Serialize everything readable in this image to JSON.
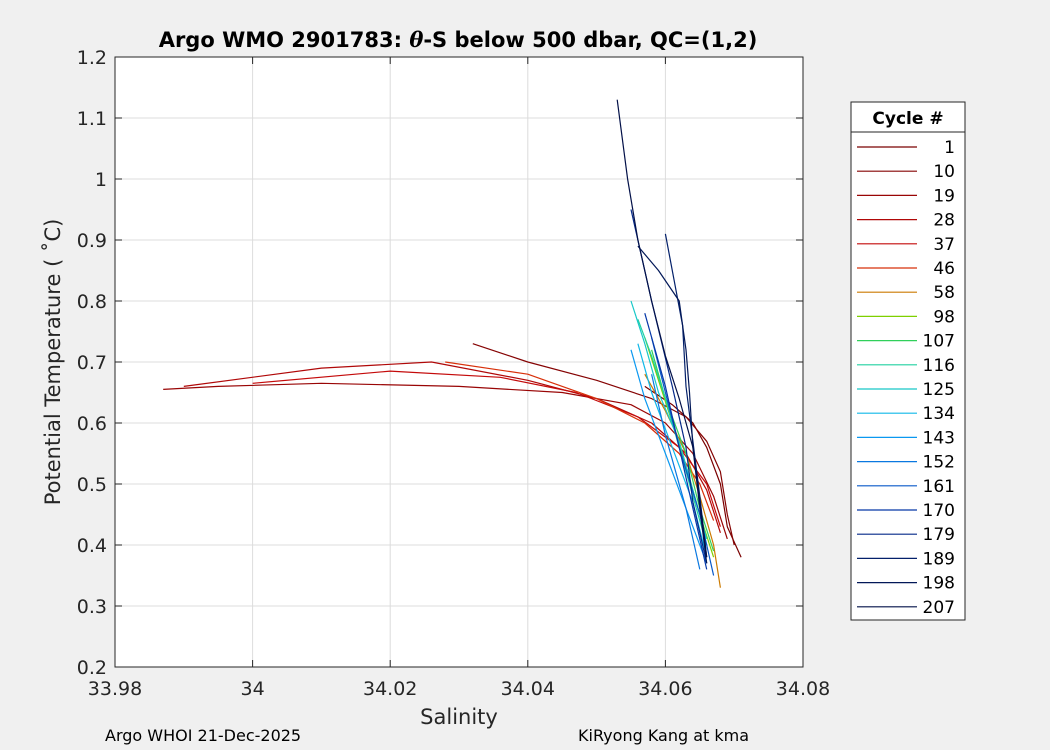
{
  "chart_data": {
    "type": "line",
    "title_prefix": "Argo WMO 2901783: ",
    "title_symbol": "θ",
    "title_suffix": "-S below 500 dbar,  QC=(1,2)",
    "xlabel": "Salinity",
    "ylabel": "Potential Temperature ( ˚C)",
    "xlim": [
      33.98,
      34.08
    ],
    "ylim": [
      0.2,
      1.2
    ],
    "xticks": [
      33.98,
      34,
      34.02,
      34.04,
      34.06,
      34.08
    ],
    "xtick_labels": [
      "33.98",
      "34",
      "34.02",
      "34.04",
      "34.06",
      "34.08"
    ],
    "yticks": [
      0.2,
      0.3,
      0.4,
      0.5,
      0.6,
      0.7,
      0.8,
      0.9,
      1.0,
      1.1,
      1.2
    ],
    "ytick_labels": [
      "0.2",
      "0.3",
      "0.4",
      "0.5",
      "0.6",
      "0.7",
      "0.8",
      "0.9",
      "1",
      "1.1",
      "1.2"
    ],
    "grid": true,
    "legend_title": "Cycle #",
    "legend_placement": "right-outside",
    "series": [
      {
        "name": "1",
        "color": "#7a0000",
        "x": [
          34.071,
          34.069,
          34.068,
          34.066,
          34.064,
          34.061,
          34.057
        ],
        "y": [
          0.38,
          0.43,
          0.5,
          0.56,
          0.6,
          0.63,
          0.66
        ]
      },
      {
        "name": "10",
        "color": "#850303",
        "x": [
          34.07,
          34.069,
          34.068,
          34.066,
          34.063,
          34.058,
          34.05,
          34.04,
          34.032
        ],
        "y": [
          0.4,
          0.45,
          0.52,
          0.57,
          0.61,
          0.64,
          0.67,
          0.7,
          0.73
        ]
      },
      {
        "name": "19",
        "color": "#990505",
        "x": [
          34.069,
          34.067,
          34.064,
          34.06,
          34.055,
          34.045,
          34.03,
          34.01,
          33.995,
          33.987
        ],
        "y": [
          0.41,
          0.48,
          0.55,
          0.6,
          0.63,
          0.65,
          0.66,
          0.665,
          0.66,
          0.655
        ]
      },
      {
        "name": "28",
        "color": "#b00808",
        "x": [
          34.068,
          34.066,
          34.063,
          34.058,
          34.05,
          34.04,
          34.026,
          34.01,
          33.99
        ],
        "y": [
          0.42,
          0.49,
          0.55,
          0.6,
          0.64,
          0.67,
          0.7,
          0.69,
          0.66
        ]
      },
      {
        "name": "37",
        "color": "#c40a0a",
        "x": [
          34.068,
          34.066,
          34.062,
          34.056,
          34.047,
          34.036,
          34.02,
          34.0
        ],
        "y": [
          0.43,
          0.5,
          0.56,
          0.61,
          0.65,
          0.675,
          0.685,
          0.665
        ]
      },
      {
        "name": "46",
        "color": "#d8300a",
        "x": [
          34.067,
          34.065,
          34.062,
          34.057,
          34.05,
          34.04,
          34.028
        ],
        "y": [
          0.44,
          0.5,
          0.55,
          0.6,
          0.64,
          0.68,
          0.7
        ]
      },
      {
        "name": "58",
        "color": "#cc7a00",
        "x": [
          34.068,
          34.067,
          34.065,
          34.063,
          34.06,
          34.057
        ],
        "y": [
          0.33,
          0.4,
          0.48,
          0.55,
          0.62,
          0.68
        ]
      },
      {
        "name": "98",
        "color": "#7fd000",
        "x": [
          34.067,
          34.065,
          34.063,
          34.061,
          34.059,
          34.057
        ],
        "y": [
          0.38,
          0.45,
          0.53,
          0.6,
          0.67,
          0.74
        ]
      },
      {
        "name": "107",
        "color": "#30d05a",
        "x": [
          34.067,
          34.065,
          34.063,
          34.06,
          34.058
        ],
        "y": [
          0.39,
          0.46,
          0.55,
          0.64,
          0.72
        ]
      },
      {
        "name": "116",
        "color": "#20d0a0",
        "x": [
          34.066,
          34.064,
          34.062,
          34.06,
          34.058,
          34.056
        ],
        "y": [
          0.4,
          0.48,
          0.56,
          0.64,
          0.71,
          0.77
        ]
      },
      {
        "name": "125",
        "color": "#18c8c8",
        "x": [
          34.066,
          34.064,
          34.062,
          34.059,
          34.057,
          34.055
        ],
        "y": [
          0.41,
          0.49,
          0.57,
          0.65,
          0.73,
          0.8
        ]
      },
      {
        "name": "134",
        "color": "#10b8e8",
        "x": [
          34.066,
          34.064,
          34.061,
          34.058,
          34.056
        ],
        "y": [
          0.38,
          0.47,
          0.56,
          0.65,
          0.73
        ]
      },
      {
        "name": "143",
        "color": "#0a98f0",
        "x": [
          34.066,
          34.063,
          34.06,
          34.057,
          34.055
        ],
        "y": [
          0.37,
          0.46,
          0.55,
          0.64,
          0.72
        ]
      },
      {
        "name": "152",
        "color": "#0a78e0",
        "x": [
          34.065,
          34.063,
          34.06,
          34.058
        ],
        "y": [
          0.36,
          0.46,
          0.58,
          0.68
        ]
      },
      {
        "name": "161",
        "color": "#0858c8",
        "x": [
          34.067,
          34.065,
          34.062,
          34.06,
          34.058
        ],
        "y": [
          0.35,
          0.45,
          0.56,
          0.65,
          0.74
        ]
      },
      {
        "name": "170",
        "color": "#0638a8",
        "x": [
          34.066,
          34.064,
          34.062,
          34.06,
          34.057
        ],
        "y": [
          0.36,
          0.46,
          0.56,
          0.66,
          0.78
        ]
      },
      {
        "name": "179",
        "color": "#042888",
        "x": [
          34.066,
          34.064,
          34.063,
          34.061,
          34.058,
          34.055
        ],
        "y": [
          0.37,
          0.47,
          0.56,
          0.66,
          0.8,
          0.95
        ]
      },
      {
        "name": "189",
        "color": "#03206a",
        "x": [
          34.066,
          34.065,
          34.064,
          34.063,
          34.0625,
          34.06
        ],
        "y": [
          0.38,
          0.48,
          0.57,
          0.66,
          0.76,
          0.91
        ]
      },
      {
        "name": "198",
        "color": "#021858",
        "x": [
          34.066,
          34.065,
          34.064,
          34.0635,
          34.063,
          34.062,
          34.059,
          34.056
        ],
        "y": [
          0.37,
          0.46,
          0.56,
          0.65,
          0.72,
          0.8,
          0.85,
          0.89
        ]
      },
      {
        "name": "207",
        "color": "#021048",
        "x": [
          34.066,
          34.065,
          34.064,
          34.062,
          34.06,
          34.058,
          34.056,
          34.0545,
          34.053
        ],
        "y": [
          0.38,
          0.47,
          0.56,
          0.64,
          0.71,
          0.8,
          0.9,
          1.0,
          1.13
        ]
      }
    ]
  },
  "footer": {
    "left": "Argo WHOI 21-Dec-2025",
    "right": "KiRyong Kang at kma"
  }
}
